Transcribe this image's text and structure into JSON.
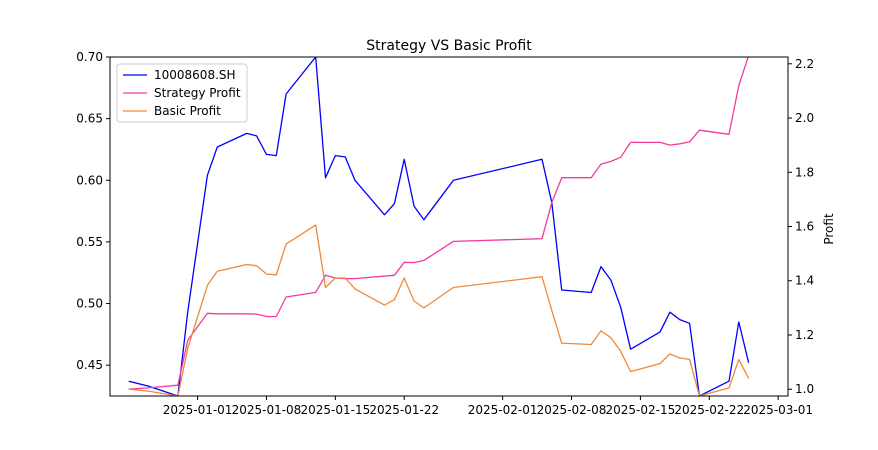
{
  "chart_data": {
    "type": "line",
    "title": "Strategy VS Basic Profit",
    "ylabel_right": "Profit",
    "x_ticks": [
      "2025-01-01",
      "2025-01-08",
      "2025-01-15",
      "2025-01-22",
      "2025-02-01",
      "2025-02-08",
      "2025-02-15",
      "2025-02-22",
      "2025-03-01"
    ],
    "y_left": {
      "range": [
        0.425,
        0.7
      ],
      "ticks": [
        "0.45",
        "0.50",
        "0.55",
        "0.60",
        "0.65",
        "0.70"
      ]
    },
    "y_right": {
      "range": [
        0.975,
        2.225
      ],
      "ticks": [
        "1.0",
        "1.2",
        "1.4",
        "1.6",
        "1.8",
        "2.0",
        "2.2"
      ]
    },
    "legend": {
      "placement": "upper-left",
      "entries": [
        "10008608.SH",
        "Strategy Profit",
        "Basic Profit"
      ]
    },
    "series": [
      {
        "name": "10008608.SH",
        "axis": "left",
        "color": "#0000ff",
        "points": [
          [
            "2024-12-25",
            0.437
          ],
          [
            "2024-12-27",
            0.433
          ],
          [
            "2024-12-30",
            0.425
          ],
          [
            "2024-12-31",
            0.493
          ],
          [
            "2025-01-02",
            0.604
          ],
          [
            "2025-01-03",
            0.627
          ],
          [
            "2025-01-06",
            0.638
          ],
          [
            "2025-01-07",
            0.636
          ],
          [
            "2025-01-08",
            0.621
          ],
          [
            "2025-01-09",
            0.62
          ],
          [
            "2025-01-10",
            0.67
          ],
          [
            "2025-01-13",
            0.7
          ],
          [
            "2025-01-14",
            0.602
          ],
          [
            "2025-01-15",
            0.62
          ],
          [
            "2025-01-16",
            0.619
          ],
          [
            "2025-01-17",
            0.6
          ],
          [
            "2025-01-20",
            0.572
          ],
          [
            "2025-01-21",
            0.581
          ],
          [
            "2025-01-22",
            0.617
          ],
          [
            "2025-01-23",
            0.579
          ],
          [
            "2025-01-24",
            0.568
          ],
          [
            "2025-01-27",
            0.6
          ],
          [
            "2025-02-05",
            0.617
          ],
          [
            "2025-02-06",
            0.582
          ],
          [
            "2025-02-07",
            0.511
          ],
          [
            "2025-02-10",
            0.509
          ],
          [
            "2025-02-11",
            0.53
          ],
          [
            "2025-02-12",
            0.519
          ],
          [
            "2025-02-13",
            0.497
          ],
          [
            "2025-02-14",
            0.463
          ],
          [
            "2025-02-17",
            0.477
          ],
          [
            "2025-02-18",
            0.493
          ],
          [
            "2025-02-19",
            0.487
          ],
          [
            "2025-02-20",
            0.484
          ],
          [
            "2025-02-21",
            0.425
          ],
          [
            "2025-02-24",
            0.437
          ],
          [
            "2025-02-25",
            0.485
          ],
          [
            "2025-02-26",
            0.452
          ]
        ]
      },
      {
        "name": "Strategy Profit",
        "axis": "right",
        "color": "#f03c9f",
        "points": [
          [
            "2024-12-25",
            1.0
          ],
          [
            "2024-12-27",
            1.005
          ],
          [
            "2024-12-30",
            1.015
          ],
          [
            "2024-12-31",
            1.18
          ],
          [
            "2025-01-02",
            1.28
          ],
          [
            "2025-01-03",
            1.278
          ],
          [
            "2025-01-06",
            1.278
          ],
          [
            "2025-01-07",
            1.277
          ],
          [
            "2025-01-08",
            1.268
          ],
          [
            "2025-01-09",
            1.268
          ],
          [
            "2025-01-10",
            1.34
          ],
          [
            "2025-01-13",
            1.357
          ],
          [
            "2025-01-14",
            1.42
          ],
          [
            "2025-01-15",
            1.41
          ],
          [
            "2025-01-16",
            1.408
          ],
          [
            "2025-01-17",
            1.408
          ],
          [
            "2025-01-20",
            1.417
          ],
          [
            "2025-01-21",
            1.42
          ],
          [
            "2025-01-22",
            1.468
          ],
          [
            "2025-01-23",
            1.467
          ],
          [
            "2025-01-24",
            1.475
          ],
          [
            "2025-01-27",
            1.545
          ],
          [
            "2025-02-05",
            1.555
          ],
          [
            "2025-02-06",
            1.688
          ],
          [
            "2025-02-07",
            1.78
          ],
          [
            "2025-02-10",
            1.78
          ],
          [
            "2025-02-11",
            1.83
          ],
          [
            "2025-02-12",
            1.84
          ],
          [
            "2025-02-13",
            1.855
          ],
          [
            "2025-02-14",
            1.91
          ],
          [
            "2025-02-17",
            1.91
          ],
          [
            "2025-02-18",
            1.9
          ],
          [
            "2025-02-19",
            1.905
          ],
          [
            "2025-02-20",
            1.912
          ],
          [
            "2025-02-21",
            1.955
          ],
          [
            "2025-02-24",
            1.94
          ],
          [
            "2025-02-25",
            2.12
          ],
          [
            "2025-02-26",
            2.23
          ]
        ]
      },
      {
        "name": "Basic Profit",
        "axis": "right",
        "color": "#f0893c",
        "points": [
          [
            "2024-12-25",
            1.0
          ],
          [
            "2024-12-27",
            0.993
          ],
          [
            "2024-12-30",
            0.975
          ],
          [
            "2024-12-31",
            1.15
          ],
          [
            "2025-01-02",
            1.383
          ],
          [
            "2025-01-03",
            1.435
          ],
          [
            "2025-01-06",
            1.46
          ],
          [
            "2025-01-07",
            1.455
          ],
          [
            "2025-01-08",
            1.425
          ],
          [
            "2025-01-09",
            1.422
          ],
          [
            "2025-01-10",
            1.535
          ],
          [
            "2025-01-13",
            1.605
          ],
          [
            "2025-01-14",
            1.375
          ],
          [
            "2025-01-15",
            1.41
          ],
          [
            "2025-01-16",
            1.41
          ],
          [
            "2025-01-17",
            1.37
          ],
          [
            "2025-01-20",
            1.31
          ],
          [
            "2025-01-21",
            1.33
          ],
          [
            "2025-01-22",
            1.41
          ],
          [
            "2025-01-23",
            1.325
          ],
          [
            "2025-01-24",
            1.3
          ],
          [
            "2025-01-27",
            1.375
          ],
          [
            "2025-02-05",
            1.415
          ],
          [
            "2025-02-06",
            1.29
          ],
          [
            "2025-02-07",
            1.17
          ],
          [
            "2025-02-10",
            1.165
          ],
          [
            "2025-02-11",
            1.215
          ],
          [
            "2025-02-12",
            1.19
          ],
          [
            "2025-02-13",
            1.14
          ],
          [
            "2025-02-14",
            1.065
          ],
          [
            "2025-02-17",
            1.095
          ],
          [
            "2025-02-18",
            1.13
          ],
          [
            "2025-02-19",
            1.115
          ],
          [
            "2025-02-20",
            1.11
          ],
          [
            "2025-02-21",
            0.975
          ],
          [
            "2025-02-24",
            1.005
          ],
          [
            "2025-02-25",
            1.11
          ],
          [
            "2025-02-26",
            1.04
          ]
        ]
      }
    ]
  }
}
